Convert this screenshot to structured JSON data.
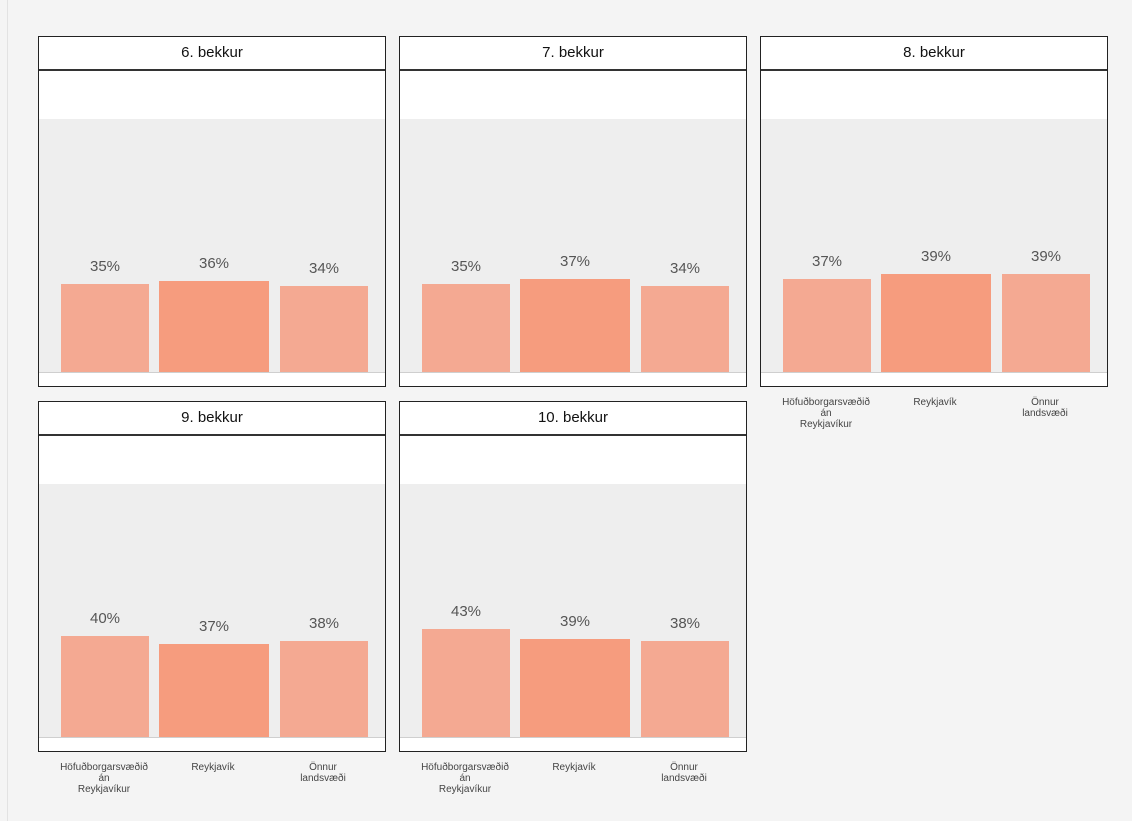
{
  "colors": {
    "bar_light": "#f4a992",
    "bar_dark": "#f69c7e",
    "plot_bg": "#eeeeee",
    "page_bg": "#f4f4f4"
  },
  "chart_data": {
    "type": "bar",
    "categories": [
      "Höfuðborgarsvæðið án Reykjavíkur",
      "Reykjavík",
      "Önnur landsvæði"
    ],
    "category_labels": [
      "Höfuðborgarsvæðið\nán\nReykjavíkur",
      "Reykjavík",
      "Önnur\nlandsvæði"
    ],
    "ylim": [
      0,
      100
    ],
    "value_suffix": "%",
    "grid": false,
    "panels": [
      {
        "title": "6. bekkur",
        "values": [
          35,
          36,
          34
        ]
      },
      {
        "title": "7. bekkur",
        "values": [
          35,
          37,
          34
        ]
      },
      {
        "title": "8. bekkur",
        "values": [
          37,
          39,
          39
        ]
      },
      {
        "title": "9. bekkur",
        "values": [
          40,
          37,
          38
        ]
      },
      {
        "title": "10. bekkur",
        "values": [
          43,
          39,
          38
        ]
      }
    ]
  }
}
